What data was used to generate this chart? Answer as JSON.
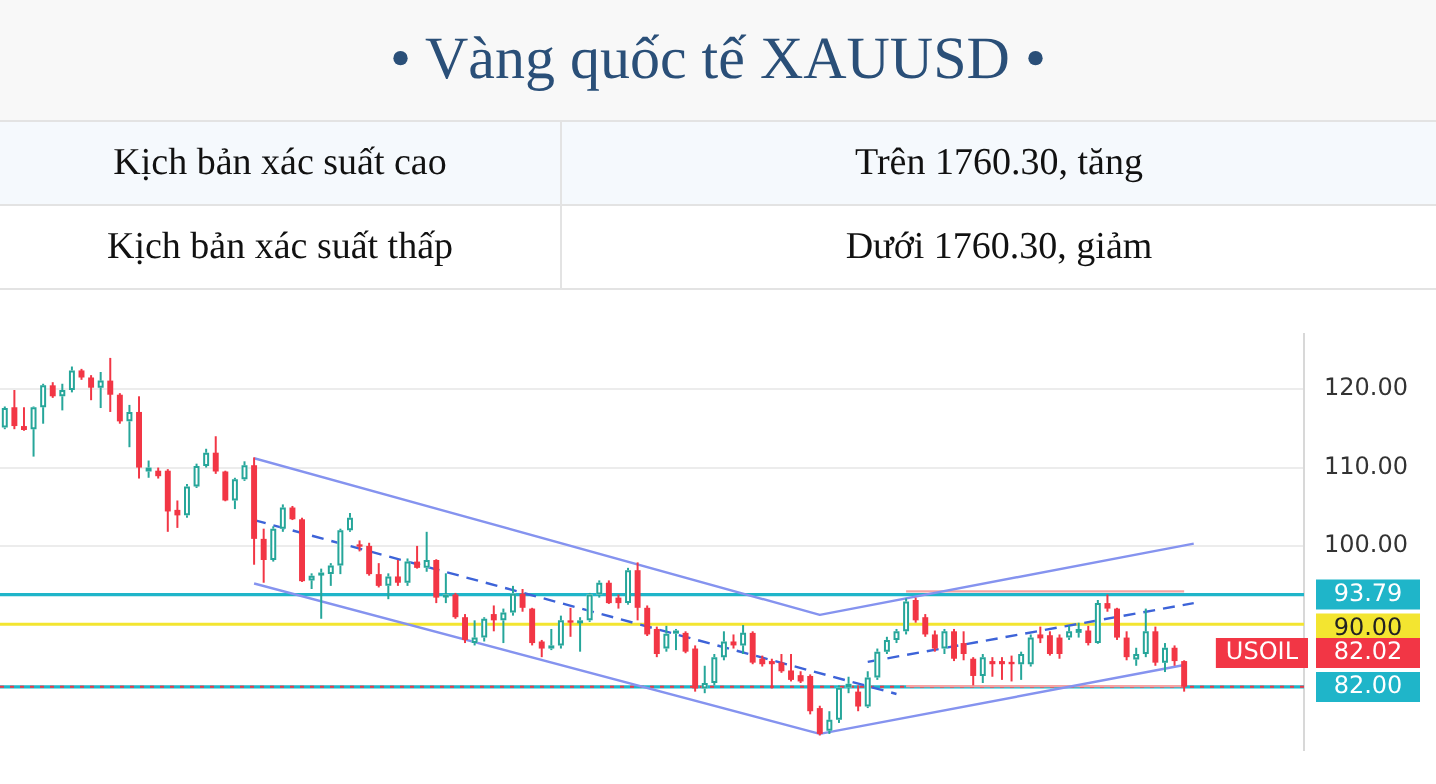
{
  "chart_data": {
    "type": "candlestick",
    "title": "• Vàng quốc tế XAUUSD •",
    "annotations": [
      "Kịch bản xác suất cao",
      "Trên 1760.30, tăng",
      "Kịch bản xác suất thấp",
      "Dưới 1760.30, giảm"
    ],
    "categories": [
      null,
      null,
      null,
      null,
      null,
      null,
      null,
      null,
      null,
      null,
      null,
      null,
      null,
      null,
      null,
      null,
      null,
      null,
      null,
      null,
      null,
      null,
      null,
      null,
      null,
      null,
      null,
      null,
      null,
      null,
      null,
      null,
      null,
      null,
      null,
      null,
      null,
      null,
      null,
      null,
      null,
      null,
      null,
      null,
      null,
      null,
      null,
      null,
      null,
      null,
      null,
      null,
      null,
      null,
      null,
      null,
      null,
      null,
      null,
      null,
      null,
      null,
      null,
      null,
      null,
      null,
      null,
      null,
      null,
      null,
      null,
      null,
      null,
      null,
      null,
      null,
      null,
      null,
      null,
      null,
      null,
      null,
      null,
      null,
      null,
      null,
      null,
      null,
      null,
      null,
      null,
      null,
      null,
      null,
      null,
      null,
      null,
      null,
      null,
      null,
      null,
      null,
      null,
      null,
      null,
      null,
      null,
      null,
      null,
      null,
      null,
      null,
      null,
      null,
      null,
      null,
      null,
      null,
      null,
      null,
      null,
      null,
      null,
      null,
      null,
      null,
      null,
      null,
      null,
      null,
      null,
      null,
      null,
      null,
      null,
      null
    ],
    "ohlc": [
      [
        115.1,
        117.8,
        114.9,
        117.6
      ],
      [
        117.7,
        119.9,
        114.9,
        115.3
      ],
      [
        115.3,
        117.7,
        114.7,
        114.8
      ],
      [
        114.9,
        117.8,
        111.4,
        117.7
      ],
      [
        117.7,
        120.7,
        115.6,
        120.5
      ],
      [
        120.5,
        120.9,
        118.9,
        119.1
      ],
      [
        119.1,
        120.7,
        117.3,
        119.9
      ],
      [
        119.9,
        122.9,
        119.6,
        122.4
      ],
      [
        122.4,
        122.6,
        121.2,
        121.5
      ],
      [
        121.5,
        121.8,
        118.6,
        120.2
      ],
      [
        120.2,
        122.2,
        117.6,
        121.1
      ],
      [
        121.1,
        124.0,
        117.1,
        119.3
      ],
      [
        119.3,
        119.5,
        115.6,
        115.9
      ],
      [
        115.9,
        118.0,
        112.6,
        117.1
      ],
      [
        117.1,
        119.1,
        108.6,
        110.0
      ],
      [
        109.5,
        110.9,
        108.7,
        110.0
      ],
      [
        109.6,
        110.0,
        108.6,
        108.9
      ],
      [
        109.6,
        109.8,
        101.8,
        104.4
      ],
      [
        104.6,
        105.8,
        102.3,
        103.9
      ],
      [
        103.9,
        107.9,
        103.6,
        107.6
      ],
      [
        107.6,
        110.5,
        107.4,
        110.2
      ],
      [
        110.2,
        112.4,
        110.0,
        111.9
      ],
      [
        111.9,
        114.0,
        109.2,
        109.5
      ],
      [
        109.5,
        109.6,
        105.7,
        105.8
      ],
      [
        105.8,
        108.7,
        104.7,
        108.5
      ],
      [
        108.5,
        110.8,
        108.3,
        110.3
      ],
      [
        110.3,
        111.3,
        97.6,
        100.9
      ],
      [
        100.9,
        102.2,
        95.3,
        98.2
      ],
      [
        98.2,
        102.5,
        98.0,
        102.2
      ],
      [
        102.2,
        105.3,
        101.8,
        104.9
      ],
      [
        104.9,
        105.1,
        103.3,
        103.4
      ],
      [
        103.4,
        103.6,
        95.4,
        95.5
      ],
      [
        95.6,
        96.5,
        94.5,
        96.2
      ],
      [
        96.4,
        97.1,
        90.7,
        96.6
      ],
      [
        96.4,
        97.8,
        94.9,
        97.5
      ],
      [
        97.5,
        102.2,
        96.4,
        102.0
      ],
      [
        102.0,
        104.2,
        101.8,
        103.6
      ],
      [
        100.2,
        100.7,
        99.3,
        99.9
      ],
      [
        100.0,
        100.4,
        96.2,
        96.4
      ],
      [
        96.4,
        97.8,
        94.7,
        94.9
      ],
      [
        94.9,
        96.5,
        93.2,
        96.1
      ],
      [
        96.1,
        98.2,
        94.9,
        95.3
      ],
      [
        95.3,
        98.4,
        94.9,
        98.0
      ],
      [
        98.0,
        100.0,
        97.1,
        97.2
      ],
      [
        97.2,
        101.8,
        96.7,
        98.2
      ],
      [
        98.2,
        98.3,
        92.7,
        93.4
      ],
      [
        93.6,
        96.5,
        92.7,
        93.8
      ],
      [
        93.8,
        94.0,
        90.7,
        90.9
      ],
      [
        90.9,
        91.3,
        87.6,
        88.0
      ],
      [
        87.6,
        90.5,
        87.3,
        88.3
      ],
      [
        88.3,
        90.9,
        87.8,
        90.7
      ],
      [
        91.3,
        92.4,
        89.1,
        90.5
      ],
      [
        90.5,
        92.0,
        87.6,
        91.5
      ],
      [
        91.5,
        94.9,
        91.1,
        93.9
      ],
      [
        93.9,
        94.5,
        91.6,
        92.1
      ],
      [
        92.0,
        92.1,
        87.3,
        87.6
      ],
      [
        87.8,
        88.0,
        85.8,
        86.9
      ],
      [
        86.9,
        89.4,
        86.7,
        87.3
      ],
      [
        87.3,
        91.1,
        86.9,
        90.5
      ],
      [
        90.5,
        92.1,
        88.4,
        90.2
      ],
      [
        90.2,
        90.9,
        86.5,
        90.5
      ],
      [
        90.5,
        94.0,
        90.3,
        93.8
      ],
      [
        93.8,
        95.6,
        93.4,
        95.3
      ],
      [
        95.3,
        95.6,
        92.6,
        92.7
      ],
      [
        93.4,
        93.8,
        92.0,
        92.7
      ],
      [
        92.7,
        97.2,
        92.5,
        96.9
      ],
      [
        96.9,
        97.9,
        90.5,
        92.1
      ],
      [
        92.1,
        92.4,
        88.5,
        88.7
      ],
      [
        89.4,
        89.7,
        85.8,
        86.2
      ],
      [
        86.9,
        89.8,
        86.5,
        88.8
      ],
      [
        88.8,
        89.4,
        86.7,
        89.2
      ],
      [
        88.9,
        89.1,
        86.3,
        86.5
      ],
      [
        86.9,
        87.3,
        81.4,
        81.8
      ],
      [
        81.8,
        84.7,
        81.2,
        82.5
      ],
      [
        82.5,
        86.2,
        82.2,
        85.8
      ],
      [
        85.8,
        89.1,
        85.4,
        87.8
      ],
      [
        87.8,
        88.7,
        86.9,
        87.3
      ],
      [
        87.3,
        89.9,
        86.2,
        88.9
      ],
      [
        88.9,
        89.1,
        84.9,
        85.1
      ],
      [
        85.6,
        86.0,
        84.6,
        84.9
      ],
      [
        85.3,
        85.6,
        81.8,
        84.9
      ],
      [
        85.1,
        86.2,
        83.8,
        84.0
      ],
      [
        84.1,
        86.2,
        82.7,
        82.9
      ],
      [
        83.5,
        84.0,
        82.5,
        82.7
      ],
      [
        83.4,
        83.6,
        78.5,
        78.9
      ],
      [
        79.3,
        79.6,
        75.8,
        76.0
      ],
      [
        76.4,
        78.9,
        76.0,
        77.8
      ],
      [
        77.8,
        82.2,
        77.4,
        81.9
      ],
      [
        81.9,
        83.3,
        81.2,
        82.4
      ],
      [
        81.4,
        82.2,
        78.9,
        79.5
      ],
      [
        79.5,
        84.0,
        79.3,
        83.2
      ],
      [
        83.2,
        86.9,
        82.9,
        86.5
      ],
      [
        86.5,
        88.4,
        86.2,
        88.0
      ],
      [
        88.0,
        89.4,
        87.6,
        89.1
      ],
      [
        89.1,
        93.3,
        88.7,
        92.9
      ],
      [
        93.1,
        93.4,
        90.2,
        90.5
      ],
      [
        90.9,
        91.3,
        88.4,
        88.7
      ],
      [
        88.7,
        89.2,
        86.5,
        86.9
      ],
      [
        86.9,
        89.4,
        86.2,
        89.1
      ],
      [
        89.1,
        89.4,
        85.3,
        85.6
      ],
      [
        87.6,
        89.1,
        85.4,
        86.2
      ],
      [
        85.6,
        85.8,
        82.2,
        83.4
      ],
      [
        83.4,
        86.2,
        82.5,
        85.8
      ],
      [
        85.3,
        85.8,
        83.3,
        84.9
      ],
      [
        85.3,
        85.8,
        82.9,
        84.9
      ],
      [
        85.2,
        86.0,
        82.7,
        84.9
      ],
      [
        84.9,
        86.5,
        82.9,
        86.2
      ],
      [
        84.9,
        88.7,
        84.6,
        88.3
      ],
      [
        88.7,
        89.7,
        87.6,
        88.2
      ],
      [
        88.6,
        89.1,
        86.0,
        86.2
      ],
      [
        88.3,
        88.7,
        85.6,
        86.2
      ],
      [
        88.3,
        89.8,
        88.0,
        89.1
      ],
      [
        88.9,
        90.2,
        88.3,
        89.4
      ],
      [
        89.2,
        89.8,
        87.3,
        87.6
      ],
      [
        87.6,
        93.1,
        87.5,
        92.7
      ],
      [
        92.7,
        93.8,
        91.6,
        92.0
      ],
      [
        92.0,
        92.1,
        88.0,
        88.3
      ],
      [
        88.3,
        89.1,
        85.4,
        85.8
      ],
      [
        85.5,
        87.0,
        84.7,
        86.2
      ],
      [
        86.2,
        92.0,
        85.8,
        89.1
      ],
      [
        89.1,
        89.7,
        84.7,
        85.1
      ],
      [
        85.1,
        87.6,
        83.9,
        87.0
      ],
      [
        87.0,
        87.3,
        84.7,
        85.3
      ],
      [
        85.3,
        85.4,
        81.4,
        82.02
      ],
      null,
      null,
      null,
      null,
      null,
      null,
      null,
      null,
      null,
      null,
      null,
      null
    ],
    "series": [
      {
        "type": "line",
        "color": "#8593ef",
        "values": [
          null,
          null,
          null,
          null,
          null,
          null,
          null,
          null,
          null,
          null,
          null,
          null,
          null,
          null,
          null,
          null,
          null,
          null,
          null,
          null,
          null,
          null,
          null,
          null,
          null,
          null,
          111.2,
          null,
          null,
          null,
          null,
          null,
          null,
          null,
          null,
          null,
          null,
          null,
          null,
          null,
          null,
          null,
          null,
          null,
          null,
          null,
          null,
          null,
          null,
          null,
          null,
          null,
          null,
          null,
          null,
          null,
          null,
          null,
          null,
          null,
          null,
          null,
          null,
          null,
          null,
          null,
          null,
          null,
          null,
          null,
          null,
          null,
          null,
          null,
          null,
          null,
          null,
          null,
          null,
          null,
          null,
          null,
          null,
          null,
          null,
          91.2,
          null,
          null,
          null,
          null,
          null,
          null,
          null,
          null,
          null,
          null,
          null,
          null,
          null,
          null,
          null,
          null,
          null,
          null,
          null,
          null,
          null,
          null,
          null,
          null,
          null,
          null,
          null,
          null,
          null,
          null,
          null,
          null,
          null,
          null,
          null,
          null,
          null,
          null,
          100.3,
          null,
          null,
          null,
          null,
          null,
          null,
          null,
          null,
          null,
          null,
          null
        ]
      },
      {
        "type": "line",
        "color": "#8593ef",
        "values": [
          null,
          null,
          null,
          null,
          null,
          null,
          null,
          null,
          null,
          null,
          null,
          null,
          null,
          null,
          null,
          null,
          null,
          null,
          null,
          null,
          null,
          null,
          null,
          null,
          null,
          null,
          95.2,
          null,
          null,
          null,
          null,
          null,
          null,
          null,
          null,
          null,
          null,
          null,
          null,
          null,
          null,
          null,
          null,
          null,
          null,
          null,
          null,
          null,
          null,
          null,
          null,
          null,
          null,
          null,
          null,
          null,
          null,
          null,
          null,
          null,
          null,
          null,
          null,
          null,
          null,
          null,
          null,
          null,
          null,
          null,
          null,
          null,
          null,
          null,
          null,
          null,
          null,
          null,
          null,
          null,
          null,
          null,
          null,
          null,
          null,
          76.0,
          null,
          null,
          null,
          null,
          null,
          null,
          null,
          null,
          null,
          null,
          null,
          null,
          null,
          null,
          null,
          null,
          null,
          null,
          null,
          null,
          null,
          null,
          null,
          null,
          null,
          null,
          null,
          null,
          null,
          null,
          null,
          null,
          null,
          null,
          null,
          null,
          null,
          84.8,
          null,
          null,
          null,
          null,
          null,
          null,
          null,
          null,
          null,
          null,
          null,
          null
        ]
      },
      {
        "type": "line",
        "color": "#3d63d8",
        "line_style": "dashed",
        "values": [
          null,
          null,
          null,
          null,
          null,
          null,
          null,
          null,
          null,
          null,
          null,
          null,
          null,
          null,
          null,
          null,
          null,
          null,
          null,
          null,
          null,
          null,
          null,
          null,
          null,
          null,
          103.3,
          null,
          null,
          null,
          null,
          null,
          null,
          null,
          null,
          null,
          null,
          null,
          null,
          null,
          null,
          null,
          null,
          null,
          null,
          null,
          null,
          null,
          null,
          null,
          null,
          null,
          null,
          null,
          null,
          null,
          null,
          null,
          null,
          null,
          null,
          null,
          null,
          null,
          null,
          null,
          null,
          null,
          null,
          null,
          null,
          null,
          null,
          null,
          null,
          null,
          null,
          null,
          null,
          null,
          null,
          null,
          null,
          null,
          null,
          null,
          null,
          null,
          null,
          null,
          null,
          null,
          null,
          81.1,
          null,
          null,
          null,
          null,
          null,
          null,
          null,
          null,
          null,
          null,
          null,
          null,
          null,
          null,
          null,
          null,
          null,
          null,
          null,
          null,
          null,
          null,
          null,
          null,
          null,
          null,
          null,
          null,
          null,
          null,
          null,
          null,
          null,
          null,
          null,
          null,
          null,
          null,
          null,
          null,
          null,
          null
        ]
      },
      {
        "type": "line",
        "color": "#3d63d8",
        "line_style": "dashed",
        "values": [
          null,
          null,
          null,
          null,
          null,
          null,
          null,
          null,
          null,
          null,
          null,
          null,
          null,
          null,
          null,
          null,
          null,
          null,
          null,
          null,
          null,
          null,
          null,
          null,
          null,
          null,
          null,
          null,
          null,
          null,
          null,
          null,
          null,
          null,
          null,
          null,
          null,
          null,
          null,
          null,
          null,
          null,
          null,
          null,
          null,
          null,
          null,
          null,
          null,
          null,
          null,
          null,
          null,
          null,
          null,
          null,
          null,
          null,
          null,
          null,
          null,
          null,
          null,
          null,
          null,
          null,
          null,
          null,
          null,
          null,
          null,
          null,
          null,
          null,
          null,
          null,
          null,
          null,
          null,
          null,
          null,
          null,
          null,
          null,
          null,
          null,
          null,
          null,
          null,
          null,
          85.2,
          null,
          null,
          null,
          null,
          null,
          null,
          null,
          null,
          null,
          null,
          null,
          null,
          null,
          null,
          null,
          null,
          null,
          null,
          null,
          null,
          null,
          null,
          null,
          null,
          null,
          null,
          null,
          null,
          null,
          null,
          null,
          null,
          null,
          92.7,
          null,
          null,
          null,
          null,
          null,
          null,
          null,
          null,
          null,
          null,
          null
        ]
      },
      {
        "type": "line",
        "color": "#f5a3a3",
        "values": [
          null,
          null,
          null,
          null,
          null,
          null,
          null,
          null,
          null,
          null,
          null,
          null,
          null,
          null,
          null,
          null,
          null,
          null,
          null,
          null,
          null,
          null,
          null,
          null,
          null,
          null,
          null,
          null,
          null,
          null,
          null,
          null,
          null,
          null,
          null,
          null,
          null,
          null,
          null,
          null,
          null,
          null,
          null,
          null,
          null,
          null,
          null,
          null,
          null,
          null,
          null,
          null,
          null,
          null,
          null,
          null,
          null,
          null,
          null,
          null,
          null,
          null,
          null,
          null,
          null,
          null,
          null,
          null,
          null,
          null,
          null,
          null,
          null,
          null,
          null,
          null,
          null,
          null,
          null,
          null,
          null,
          null,
          null,
          null,
          null,
          null,
          null,
          null,
          null,
          null,
          null,
          null,
          null,
          null,
          94.2,
          null,
          null,
          null,
          null,
          null,
          null,
          null,
          null,
          null,
          null,
          null,
          null,
          null,
          null,
          null,
          null,
          null,
          null,
          null,
          null,
          null,
          null,
          null,
          null,
          null,
          null,
          null,
          null,
          94.2,
          null,
          null,
          null,
          null,
          null,
          null,
          null,
          null,
          null,
          null,
          null,
          null
        ]
      },
      {
        "type": "line",
        "color": "#f5a3a3",
        "values": [
          null,
          null,
          null,
          null,
          null,
          null,
          null,
          null,
          null,
          null,
          null,
          null,
          null,
          null,
          null,
          null,
          null,
          null,
          null,
          null,
          null,
          null,
          null,
          null,
          null,
          null,
          null,
          null,
          null,
          null,
          null,
          null,
          null,
          null,
          null,
          null,
          null,
          null,
          null,
          null,
          null,
          null,
          null,
          null,
          null,
          null,
          null,
          null,
          null,
          null,
          null,
          null,
          null,
          null,
          null,
          null,
          null,
          null,
          null,
          null,
          null,
          null,
          null,
          null,
          null,
          null,
          null,
          null,
          null,
          null,
          null,
          null,
          null,
          null,
          null,
          null,
          null,
          null,
          null,
          null,
          null,
          null,
          null,
          null,
          null,
          null,
          null,
          null,
          null,
          null,
          null,
          null,
          null,
          null,
          82.1,
          null,
          null,
          null,
          null,
          null,
          null,
          null,
          null,
          null,
          null,
          null,
          null,
          null,
          null,
          null,
          null,
          null,
          null,
          null,
          null,
          null,
          null,
          null,
          null,
          null,
          null,
          null,
          null,
          82.1,
          null,
          null,
          null,
          null,
          null,
          null,
          null,
          null,
          null,
          null,
          null,
          null
        ]
      }
    ],
    "ylim": [
      74,
      127
    ],
    "yticks": [
      {
        "value": 100,
        "label": "100.00"
      },
      {
        "value": 110,
        "label": "110.00"
      },
      {
        "value": 120,
        "label": "120.00"
      }
    ],
    "ref_lines": [
      {
        "axis": "y",
        "value": 93.79,
        "label": "93.79",
        "color": "#1fb5c9"
      },
      {
        "axis": "y",
        "value": 90.0,
        "label": "90.00",
        "color": "#f3e530"
      },
      {
        "axis": "y",
        "value": 82.0,
        "label": "82.00",
        "color": "#1fb5c9"
      },
      {
        "axis": "y",
        "value": 82.02,
        "label": "USOIL 82.02",
        "color": "#f23645",
        "line_style": "dotted"
      }
    ],
    "grid": "y",
    "legend": false,
    "tick_labels": "y"
  }
}
